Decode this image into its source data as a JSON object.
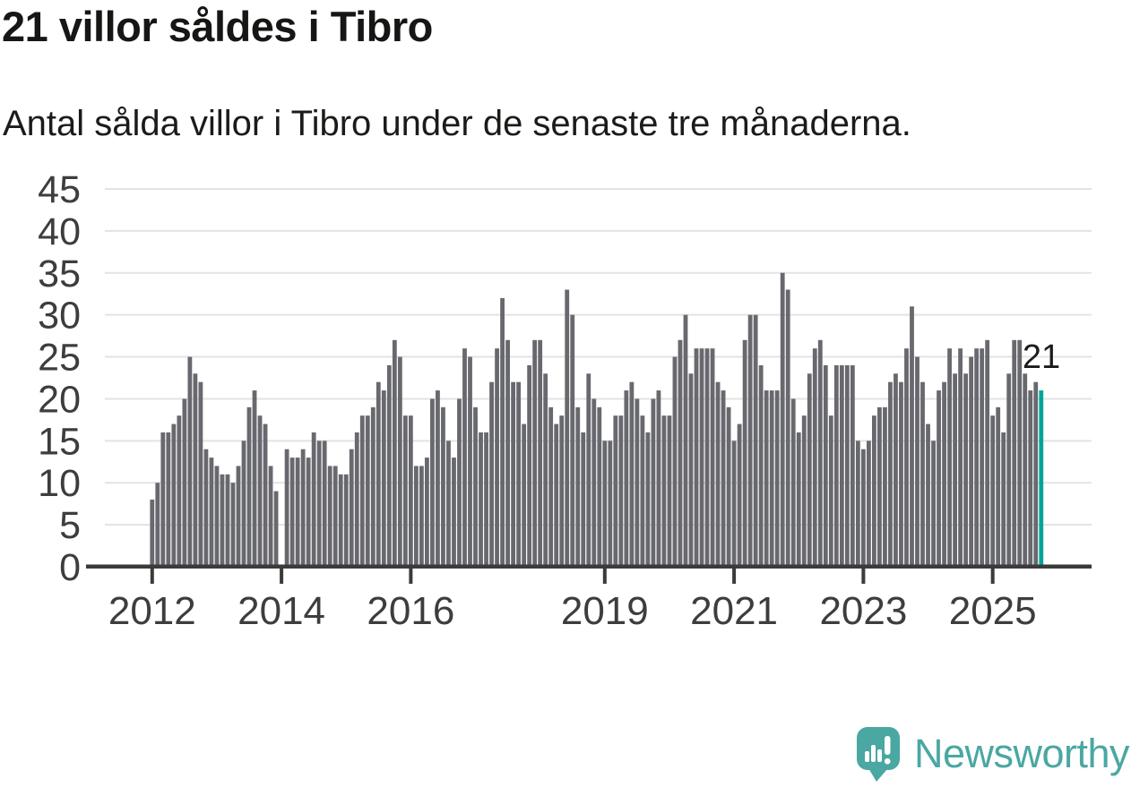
{
  "header": {
    "title": "21 villor såldes i Tibro",
    "subtitle": "Antal sålda villor i Tibro under de senaste tre månaderna."
  },
  "chart_data": {
    "type": "bar",
    "title": "21 villor såldes i Tibro",
    "subtitle": "Antal sålda villor i Tibro under de senaste tre månaderna.",
    "x_start": "2012-01",
    "x_end": "2025-10",
    "x_note": "one bar per month; null = missing month (gap at 2014-01)",
    "ylim": [
      0,
      45
    ],
    "y_ticks": [
      0,
      5,
      10,
      15,
      20,
      25,
      30,
      35,
      40,
      45
    ],
    "grid": "horizontal",
    "legend": "none",
    "x_ticks": [
      {
        "label": "2012",
        "month": 0
      },
      {
        "label": "2014",
        "month": 24
      },
      {
        "label": "2016",
        "month": 48
      },
      {
        "label": "2019",
        "month": 84
      },
      {
        "label": "2021",
        "month": 108
      },
      {
        "label": "2023",
        "month": 132
      },
      {
        "label": "2025",
        "month": 156
      }
    ],
    "values": [
      8,
      10,
      16,
      16,
      17,
      18,
      20,
      25,
      23,
      22,
      14,
      13,
      12,
      11,
      11,
      10,
      12,
      15,
      19,
      21,
      18,
      17,
      12,
      9,
      null,
      14,
      13,
      13,
      14,
      13,
      16,
      15,
      15,
      12,
      12,
      11,
      11,
      14,
      16,
      18,
      18,
      19,
      22,
      21,
      24,
      27,
      25,
      18,
      18,
      12,
      12,
      13,
      20,
      21,
      19,
      15,
      13,
      20,
      26,
      25,
      19,
      16,
      16,
      22,
      26,
      32,
      27,
      22,
      22,
      17,
      24,
      27,
      27,
      23,
      19,
      17,
      18,
      33,
      30,
      19,
      16,
      23,
      20,
      19,
      15,
      15,
      18,
      18,
      21,
      22,
      20,
      18,
      16,
      20,
      21,
      18,
      18,
      25,
      27,
      30,
      23,
      26,
      26,
      26,
      26,
      22,
      21,
      19,
      15,
      17,
      27,
      30,
      30,
      24,
      21,
      21,
      21,
      35,
      33,
      20,
      16,
      18,
      23,
      26,
      27,
      24,
      18,
      24,
      24,
      24,
      24,
      15,
      14,
      15,
      18,
      19,
      19,
      22,
      23,
      22,
      26,
      31,
      25,
      22,
      17,
      15,
      21,
      22,
      26,
      23,
      26,
      23,
      25,
      26,
      26,
      27,
      18,
      19,
      16,
      23,
      27,
      27,
      23,
      21,
      22,
      21
    ],
    "highlight_last": true,
    "annotation": {
      "text": "21",
      "value": 21
    },
    "colors": {
      "bar": "#68686F",
      "highlight": "#00A59A",
      "gridline": "#E3E3E3",
      "axis": "#3B3B3B",
      "tick_label": "#3D3D3D",
      "annotation": "#1C1C1A"
    }
  },
  "footer": {
    "brand": "Newsworthy",
    "brand_color": "#4BA7A2"
  }
}
